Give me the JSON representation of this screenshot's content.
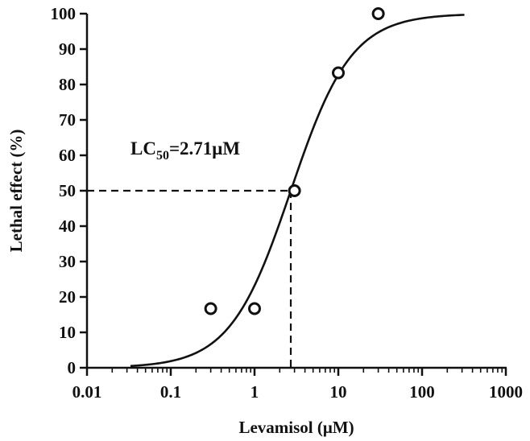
{
  "chart_data": {
    "type": "scatter",
    "xlabel": "Levamisol (μM)",
    "ylabel": "Lethal effect (%)",
    "x_scale": "log",
    "xlim": [
      0.01,
      1000
    ],
    "ylim": [
      0,
      100
    ],
    "x_ticks": [
      "0.01",
      "0.1",
      "1",
      "10",
      "100",
      "1000"
    ],
    "y_ticks": [
      "0",
      "10",
      "20",
      "30",
      "40",
      "50",
      "60",
      "70",
      "80",
      "90",
      "100"
    ],
    "grid": false,
    "points": [
      {
        "x": 0.3,
        "y": 16.7
      },
      {
        "x": 1,
        "y": 16.7
      },
      {
        "x": 3,
        "y": 50
      },
      {
        "x": 10,
        "y": 83.3
      },
      {
        "x": 30,
        "y": 100
      }
    ],
    "fit": {
      "model": "sigmoid dose-response",
      "bottom": 0,
      "top": 100,
      "lc50": 2.71,
      "hill_slope": 1.2,
      "x_range": [
        0.033,
        320
      ]
    },
    "reference_point": {
      "x": 2.71,
      "y": 50
    },
    "annotation": {
      "prefix": "LC",
      "subscript": "50",
      "suffix": "=2.71μM"
    }
  }
}
